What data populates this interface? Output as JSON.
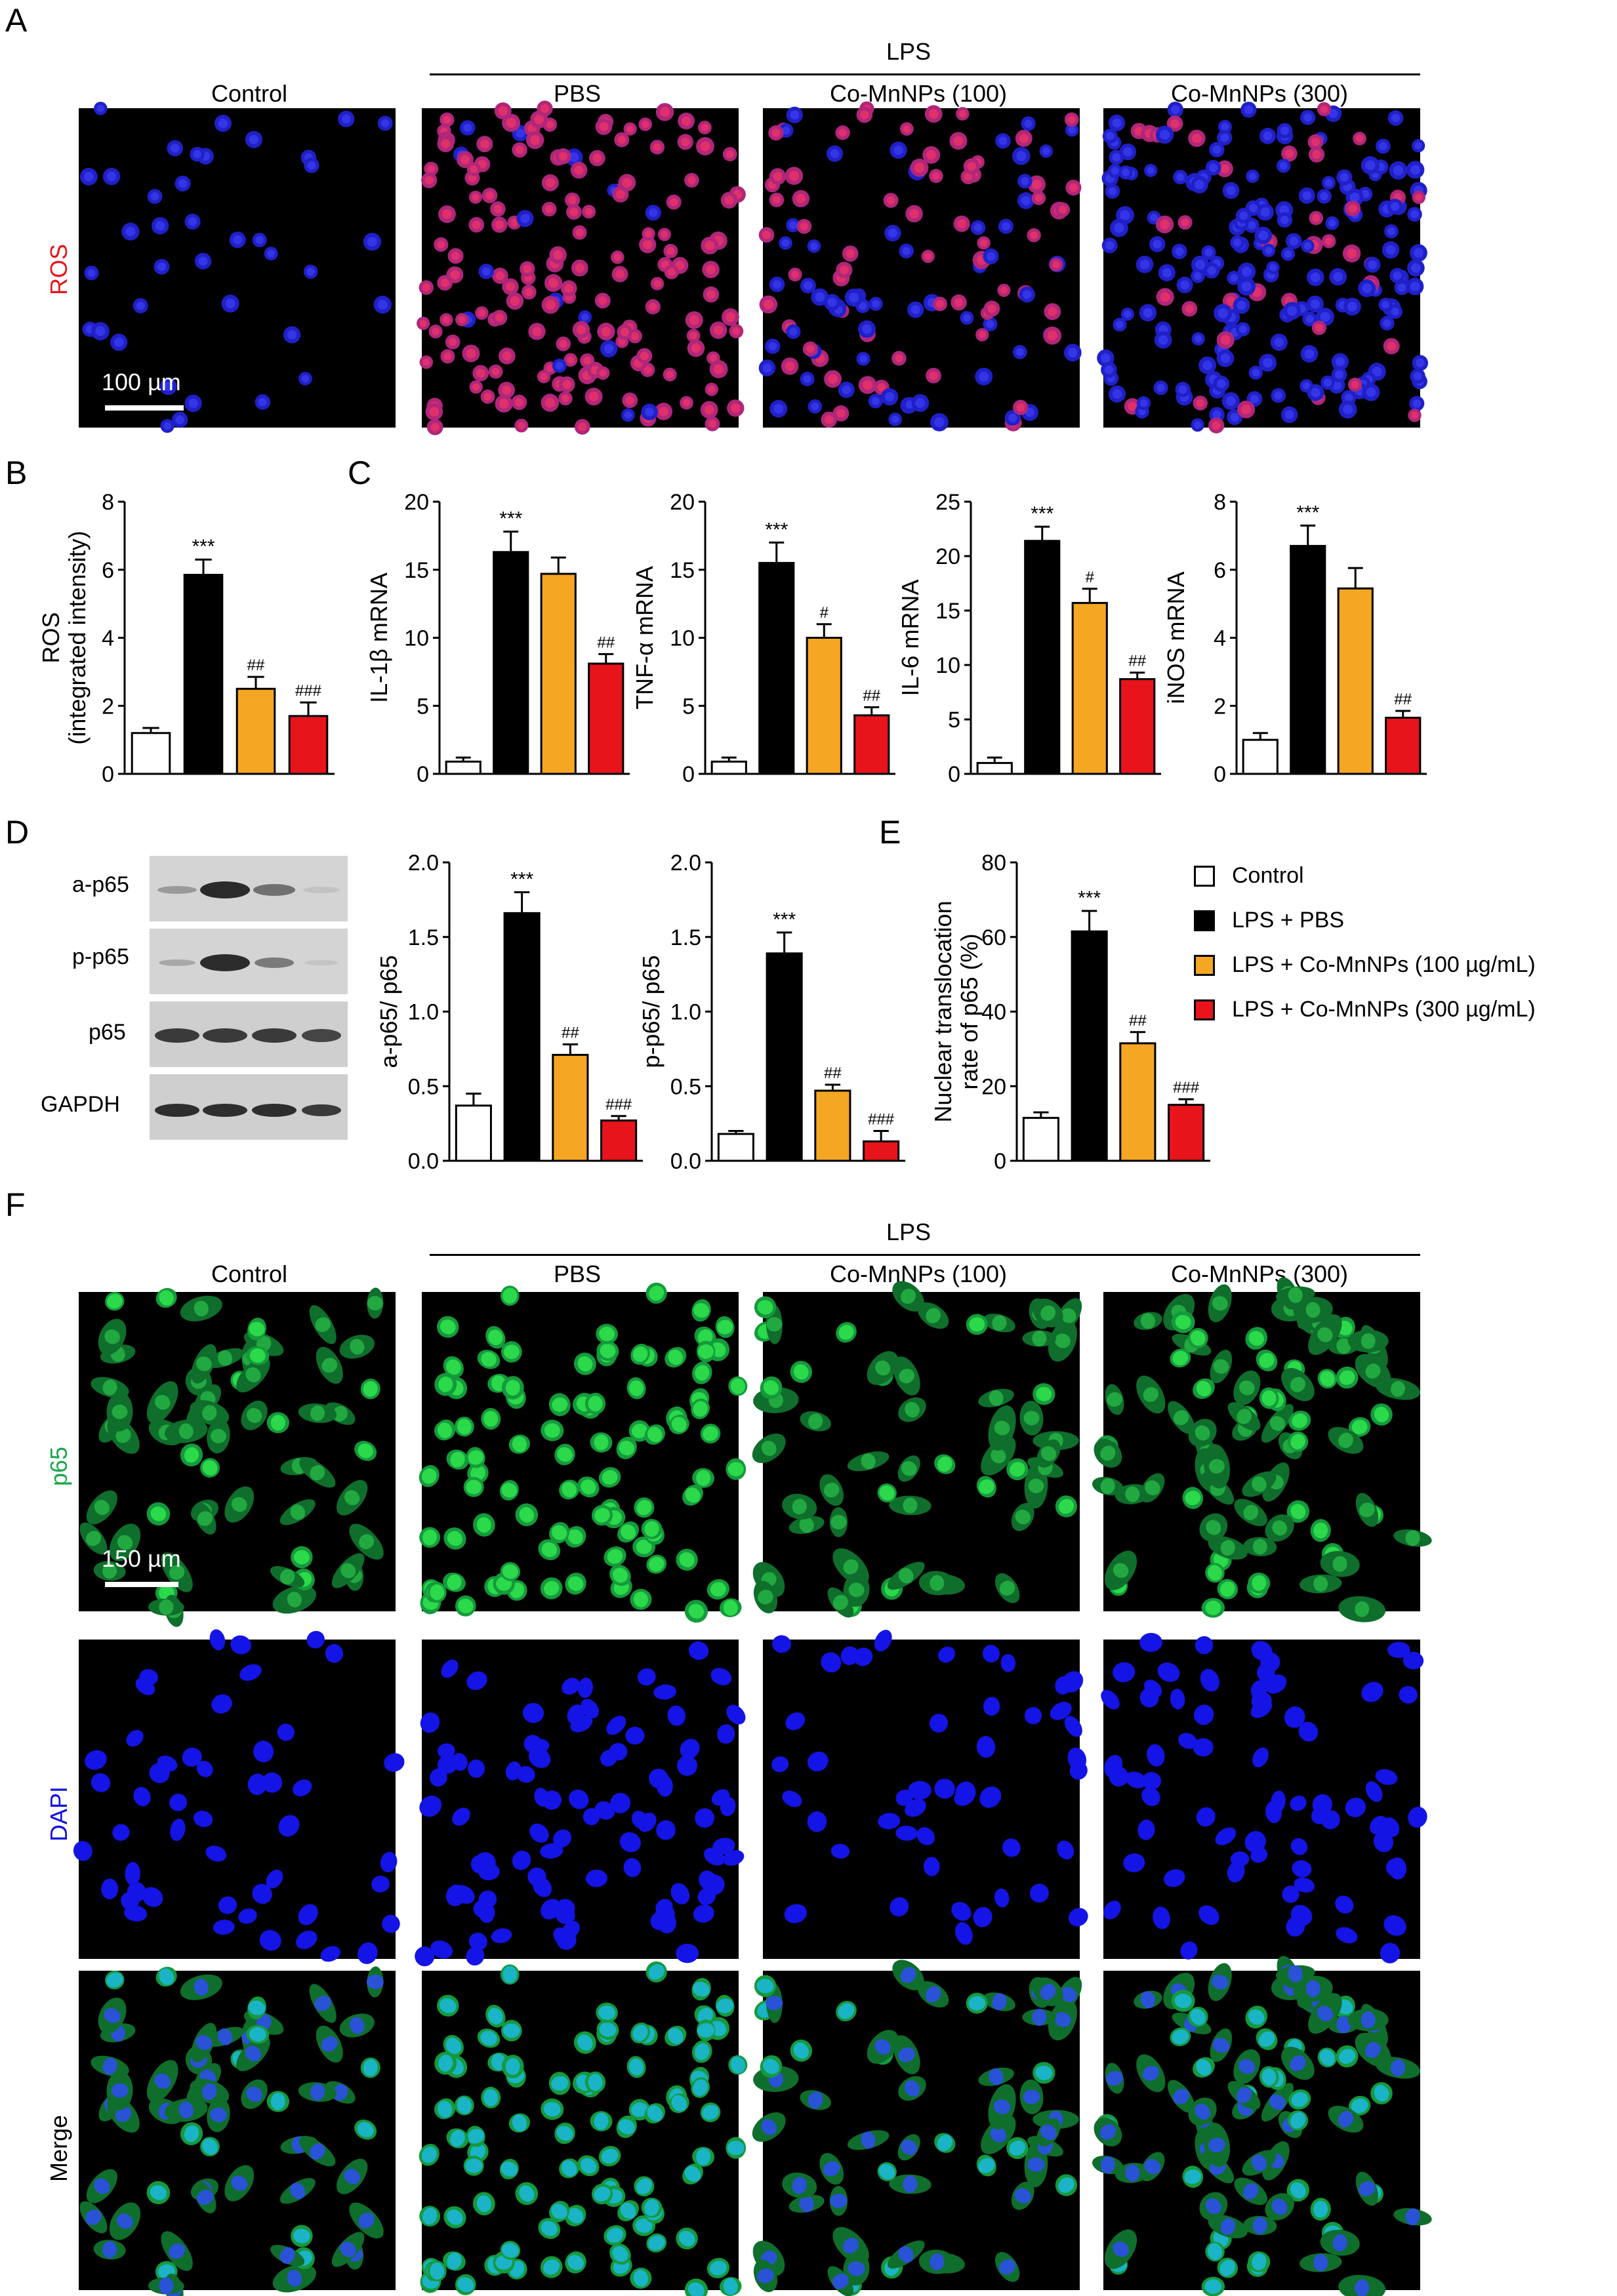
{
  "panel_labels": {
    "a": "A",
    "b": "B",
    "c": "C",
    "d": "D",
    "e": "E",
    "f": "F"
  },
  "colors": {
    "control": "#ffffff",
    "pbs": "#000000",
    "np100": "#f5a623",
    "np300": "#e8141c",
    "ros_stain": "#e8141c",
    "p65_stain": "#1aa64a",
    "dapi_stain": "#1010e0"
  },
  "panel_a": {
    "lps": "LPS",
    "columns": [
      "Control",
      "PBS",
      "Co-MnNPs (100)",
      "Co-MnNPs (300)"
    ],
    "row_label": "ROS",
    "scale_bar": "100 µm"
  },
  "panel_d_blot": {
    "bands": [
      "a-p65",
      "p-p65",
      "p65",
      "GAPDH"
    ]
  },
  "legend": [
    "Control",
    "LPS + PBS",
    "LPS + Co-MnNPs (100 µg/mL)",
    "LPS + Co-MnNPs (300 µg/mL)"
  ],
  "panel_f": {
    "lps": "LPS",
    "columns": [
      "Control",
      "PBS",
      "Co-MnNPs (100)",
      "Co-MnNPs (300)"
    ],
    "rows": [
      "p65",
      "DAPI",
      "Merge"
    ],
    "scale_bar": "150 µm"
  },
  "chart_data": [
    {
      "id": "ros",
      "type": "bar",
      "ylabel": [
        "ROS",
        "(integrated intensity)"
      ],
      "ylim": [
        0,
        8
      ],
      "yticks": [
        0,
        2,
        4,
        6,
        8
      ],
      "values": [
        1.2,
        5.85,
        2.5,
        1.7
      ],
      "errors": [
        0.15,
        0.45,
        0.35,
        0.4
      ],
      "annotations": [
        "",
        "***",
        "##",
        "###"
      ]
    },
    {
      "id": "il1b",
      "type": "bar",
      "ylabel": [
        "IL-1β mRNA"
      ],
      "ylim": [
        0,
        20
      ],
      "yticks": [
        0,
        5,
        10,
        15,
        20
      ],
      "values": [
        0.9,
        16.3,
        14.7,
        8.1
      ],
      "errors": [
        0.3,
        1.5,
        1.2,
        0.7
      ],
      "annotations": [
        "",
        "***",
        "",
        "##"
      ]
    },
    {
      "id": "tnfa",
      "type": "bar",
      "ylabel": [
        "TNF-α mRNA"
      ],
      "ylim": [
        0,
        20
      ],
      "yticks": [
        0,
        5,
        10,
        15,
        20
      ],
      "values": [
        0.9,
        15.5,
        10.0,
        4.3
      ],
      "errors": [
        0.3,
        1.5,
        1.0,
        0.6
      ],
      "annotations": [
        "",
        "***",
        "#",
        "##"
      ]
    },
    {
      "id": "il6",
      "type": "bar",
      "ylabel": [
        "IL-6 mRNA"
      ],
      "ylim": [
        0,
        25
      ],
      "yticks": [
        0,
        5,
        10,
        15,
        20,
        25
      ],
      "values": [
        1.0,
        21.4,
        15.7,
        8.7
      ],
      "errors": [
        0.5,
        1.3,
        1.3,
        0.6
      ],
      "annotations": [
        "",
        "***",
        "#",
        "##"
      ]
    },
    {
      "id": "inos",
      "type": "bar",
      "ylabel": [
        "iNOS mRNA"
      ],
      "ylim": [
        0,
        8
      ],
      "yticks": [
        0,
        2,
        4,
        6,
        8
      ],
      "values": [
        1.0,
        6.7,
        5.45,
        1.65
      ],
      "errors": [
        0.2,
        0.6,
        0.6,
        0.2
      ],
      "annotations": [
        "",
        "***",
        "",
        "##"
      ]
    },
    {
      "id": "ap65",
      "type": "bar",
      "ylabel": [
        "a-p65/ p65"
      ],
      "ylim": [
        0,
        2.0
      ],
      "yticks": [
        0.0,
        0.5,
        1.0,
        1.5,
        2.0
      ],
      "ytick_labels": [
        "0.0",
        "0.5",
        "1.0",
        "1.5",
        "2.0"
      ],
      "values": [
        0.37,
        1.66,
        0.71,
        0.27
      ],
      "errors": [
        0.08,
        0.14,
        0.07,
        0.03
      ],
      "annotations": [
        "",
        "***",
        "##",
        "###"
      ]
    },
    {
      "id": "pp65",
      "type": "bar",
      "ylabel": [
        "p-p65/ p65"
      ],
      "ylim": [
        0,
        2.0
      ],
      "yticks": [
        0.0,
        0.5,
        1.0,
        1.5,
        2.0
      ],
      "ytick_labels": [
        "0.0",
        "0.5",
        "1.0",
        "1.5",
        "2.0"
      ],
      "values": [
        0.18,
        1.39,
        0.47,
        0.13
      ],
      "errors": [
        0.02,
        0.14,
        0.04,
        0.07
      ],
      "annotations": [
        "",
        "***",
        "##",
        "###"
      ]
    },
    {
      "id": "nuc",
      "type": "bar",
      "ylabel": [
        "Nuclear translocation",
        "rate of p65 (%)"
      ],
      "ylim": [
        0,
        80
      ],
      "yticks": [
        0,
        20,
        40,
        60,
        80
      ],
      "values": [
        11.5,
        61.5,
        31.5,
        15.0
      ],
      "errors": [
        1.5,
        5.5,
        3.0,
        1.5
      ],
      "annotations": [
        "",
        "***",
        "##",
        "###"
      ]
    }
  ]
}
